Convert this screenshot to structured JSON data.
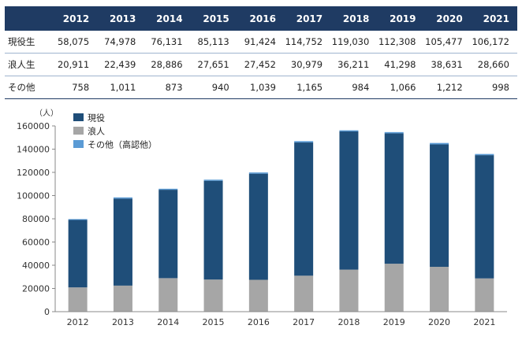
{
  "table": {
    "years": [
      "2012",
      "2013",
      "2014",
      "2015",
      "2016",
      "2017",
      "2018",
      "2019",
      "2020",
      "2021"
    ],
    "rows": [
      {
        "label": "現役生",
        "values": [
          "58,075",
          "74,978",
          "76,131",
          "85,113",
          "91,424",
          "114,752",
          "119,030",
          "112,308",
          "105,477",
          "106,172"
        ]
      },
      {
        "label": "浪人生",
        "values": [
          "20,911",
          "22,439",
          "28,886",
          "27,651",
          "27,452",
          "30,979",
          "36,211",
          "41,298",
          "38,631",
          "28,660"
        ]
      },
      {
        "label": "その他",
        "values": [
          "758",
          "1,011",
          "873",
          "940",
          "1,039",
          "1,165",
          "984",
          "1,066",
          "1,212",
          "998"
        ]
      }
    ]
  },
  "chart_data": {
    "type": "bar",
    "stacked": true,
    "categories": [
      "2012",
      "2013",
      "2014",
      "2015",
      "2016",
      "2017",
      "2018",
      "2019",
      "2020",
      "2021"
    ],
    "series": [
      {
        "name": "浪人",
        "color": "#a6a6a6",
        "values": [
          20911,
          22439,
          28886,
          27651,
          27452,
          30979,
          36211,
          41298,
          38631,
          28660
        ]
      },
      {
        "name": "現役",
        "color": "#1f4e79",
        "values": [
          58075,
          74978,
          76131,
          85113,
          91424,
          114752,
          119030,
          112308,
          105477,
          106172
        ]
      },
      {
        "name": "その他（高認他）",
        "color": "#5b9bd5",
        "values": [
          758,
          1011,
          873,
          940,
          1039,
          1165,
          984,
          1066,
          1212,
          998
        ]
      }
    ],
    "legend": [
      {
        "name": "現役",
        "color": "#1f4e79"
      },
      {
        "name": "浪人",
        "color": "#a6a6a6"
      },
      {
        "name": "その他（高認他）",
        "color": "#5b9bd5"
      }
    ],
    "legend_position": "top-left",
    "yunit": "（人）",
    "ylim": [
      0,
      160000
    ],
    "yticks": [
      0,
      20000,
      40000,
      60000,
      80000,
      100000,
      120000,
      140000,
      160000
    ],
    "ytick_labels": [
      "0",
      "20000",
      "40000",
      "60000",
      "80000",
      "100000",
      "120000",
      "140000",
      "160000"
    ],
    "grid": false
  }
}
